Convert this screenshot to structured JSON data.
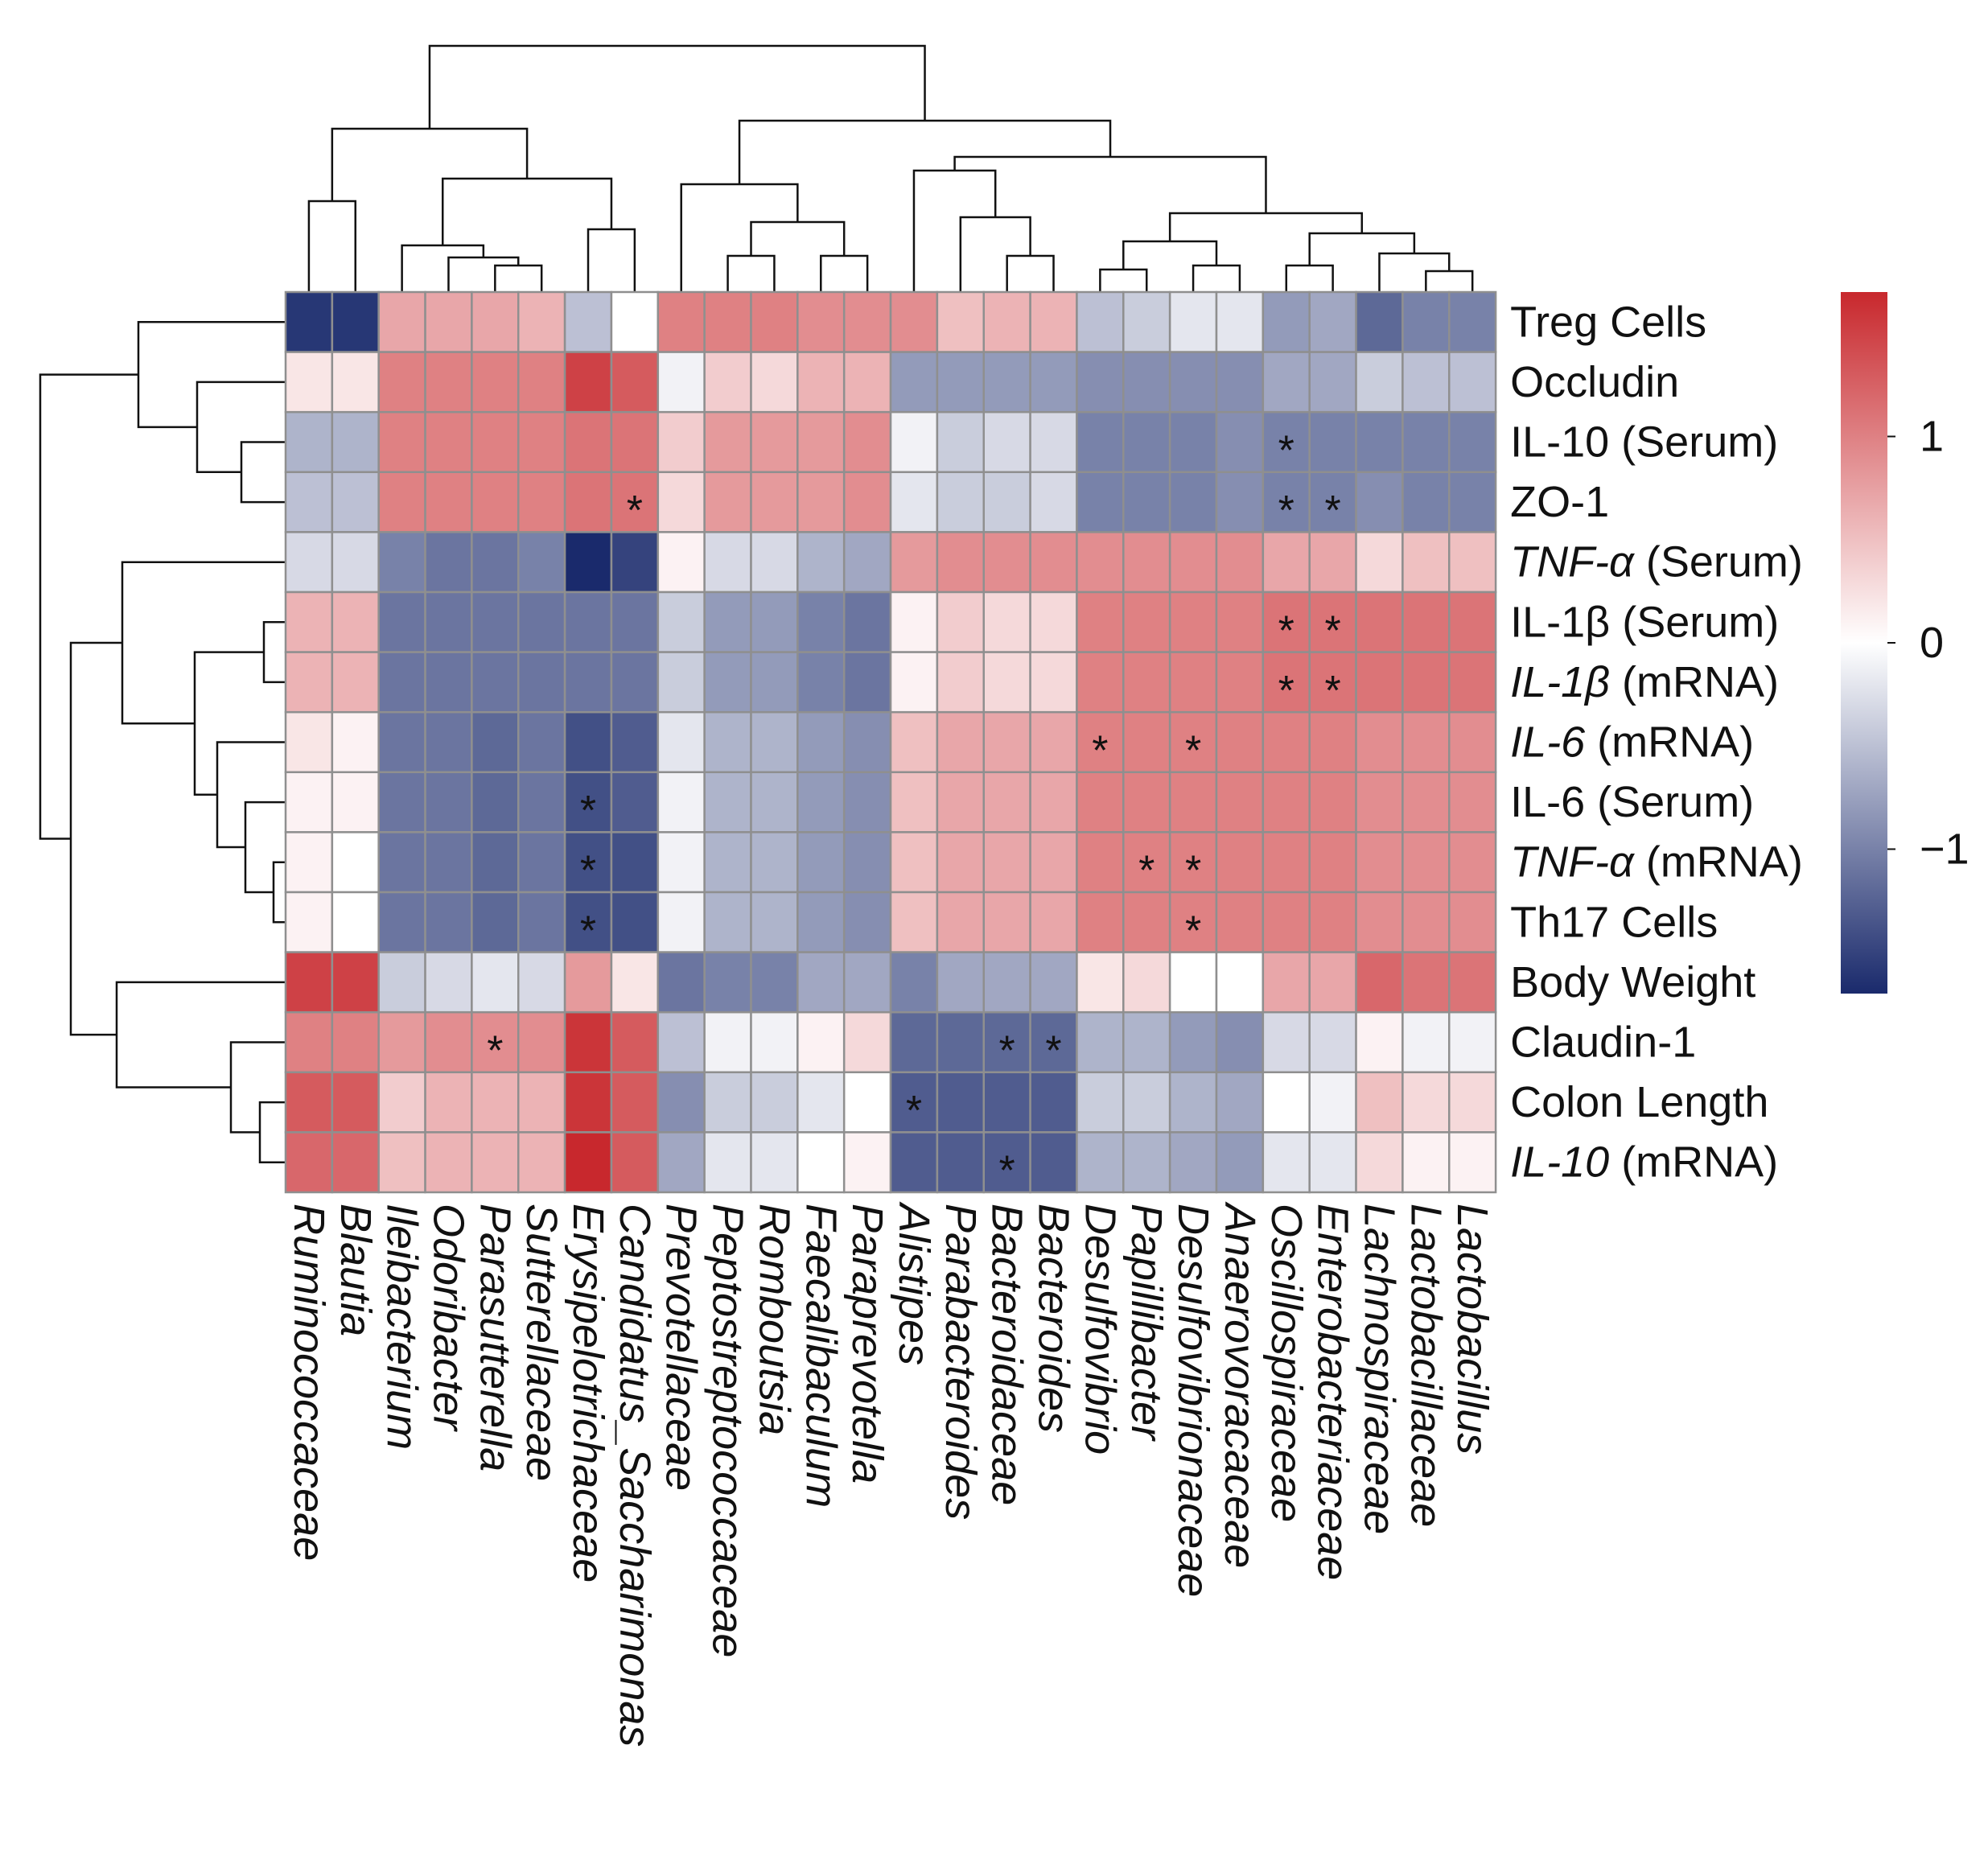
{
  "chart_data": {
    "type": "heatmap",
    "title": "",
    "color_scale": {
      "low": "#1a2a6c",
      "mid": "#ffffff",
      "high": "#c8282d",
      "ticks": [
        1,
        0,
        -1
      ],
      "tick_labels": [
        "1",
        "0",
        "−1"
      ],
      "range": [
        -1.7,
        1.7
      ]
    },
    "rows": [
      {
        "name": "Treg Cells",
        "parts": [
          {
            "t": "Treg Cells",
            "i": false
          }
        ]
      },
      {
        "name": "Occludin",
        "parts": [
          {
            "t": "Occludin",
            "i": false
          }
        ]
      },
      {
        "name": "IL-10 (Serum)",
        "parts": [
          {
            "t": "IL-10 (Serum)",
            "i": false
          }
        ]
      },
      {
        "name": "ZO-1",
        "parts": [
          {
            "t": "ZO-1",
            "i": false
          }
        ]
      },
      {
        "name": "TNF-α (Serum)",
        "parts": [
          {
            "t": "TNF-α",
            "i": true
          },
          {
            "t": " (Serum)",
            "i": false
          }
        ]
      },
      {
        "name": "IL-1β (Serum)",
        "parts": [
          {
            "t": "IL-1β (Serum)",
            "i": false
          }
        ]
      },
      {
        "name": "IL-1β (mRNA)",
        "parts": [
          {
            "t": "IL-1β",
            "i": true
          },
          {
            "t": " (mRNA)",
            "i": false
          }
        ]
      },
      {
        "name": "IL-6 (mRNA)",
        "parts": [
          {
            "t": "IL-6",
            "i": true
          },
          {
            "t": " (mRNA)",
            "i": false
          }
        ]
      },
      {
        "name": "IL-6 (Serum)",
        "parts": [
          {
            "t": "IL-6 (Serum)",
            "i": false
          }
        ]
      },
      {
        "name": "TNF-α (mRNA)",
        "parts": [
          {
            "t": "TNF-α",
            "i": true
          },
          {
            "t": " (mRNA)",
            "i": false
          }
        ]
      },
      {
        "name": "Th17 Cells",
        "parts": [
          {
            "t": "Th17 Cells",
            "i": false
          }
        ]
      },
      {
        "name": "Body Weight",
        "parts": [
          {
            "t": "Body Weight",
            "i": false
          }
        ]
      },
      {
        "name": "Claudin-1",
        "parts": [
          {
            "t": "Claudin-1",
            "i": false
          }
        ]
      },
      {
        "name": "Colon Length",
        "parts": [
          {
            "t": "Colon Length",
            "i": false
          }
        ]
      },
      {
        "name": "IL-10 (mRNA)",
        "parts": [
          {
            "t": "IL-10",
            "i": true
          },
          {
            "t": " (mRNA)",
            "i": false
          }
        ]
      }
    ],
    "columns": [
      "Ruminococcaceae",
      "Blautia",
      "Ileibacterium",
      "Odoribacter",
      "Parasutterella",
      "Sutterellaceae",
      "Erysipelotrichaceae",
      "Candidatus_Saccharimonas",
      "Prevotellaceae",
      "Peptostreptococcaceae",
      "Romboutsia",
      "Faecalibaculum",
      "Paraprevotella",
      "Alistipes",
      "Parabacteroides",
      "Bacteroidaceae",
      "Bacteroides",
      "Desulfovibrio",
      "Papillibacter",
      "Desulfovibrionaceae",
      "Anaerovoracaceae",
      "Oscillospiraceae",
      "Enterobacteriaceae",
      "Lachnospiraceae",
      "Lactobacillaceae",
      "Lactobacillus"
    ],
    "values": [
      [
        -1.6,
        -1.6,
        0.7,
        0.7,
        0.7,
        0.6,
        -0.5,
        0.0,
        1.0,
        1.0,
        1.0,
        0.9,
        0.9,
        0.9,
        0.5,
        0.6,
        0.6,
        -0.5,
        -0.4,
        -0.2,
        -0.2,
        -0.8,
        -0.7,
        -1.2,
        -1.0,
        -1.0
      ],
      [
        0.2,
        0.2,
        1.0,
        1.0,
        1.0,
        1.0,
        1.5,
        1.3,
        -0.1,
        0.4,
        0.3,
        0.6,
        0.6,
        -0.8,
        -0.8,
        -0.8,
        -0.8,
        -0.9,
        -0.9,
        -0.9,
        -0.9,
        -0.7,
        -0.7,
        -0.4,
        -0.5,
        -0.5
      ],
      [
        -0.6,
        -0.6,
        1.0,
        1.0,
        1.0,
        1.0,
        1.1,
        1.1,
        0.4,
        0.8,
        0.8,
        0.8,
        0.9,
        -0.1,
        -0.4,
        -0.3,
        -0.3,
        -1.0,
        -1.0,
        -1.0,
        -0.9,
        -1.0,
        -1.0,
        -1.0,
        -1.0,
        -1.0
      ],
      [
        -0.5,
        -0.5,
        1.0,
        1.0,
        1.0,
        1.0,
        1.1,
        1.1,
        0.3,
        0.8,
        0.8,
        0.8,
        0.9,
        -0.2,
        -0.4,
        -0.4,
        -0.3,
        -1.0,
        -1.0,
        -1.0,
        -0.9,
        -1.0,
        -1.0,
        -0.9,
        -1.0,
        -1.0
      ],
      [
        -0.3,
        -0.3,
        -1.0,
        -1.1,
        -1.1,
        -1.0,
        -1.7,
        -1.5,
        0.1,
        -0.3,
        -0.3,
        -0.6,
        -0.7,
        0.8,
        0.9,
        0.9,
        0.9,
        0.9,
        0.9,
        0.9,
        0.9,
        0.7,
        0.7,
        0.3,
        0.5,
        0.5
      ],
      [
        0.6,
        0.6,
        -1.1,
        -1.1,
        -1.1,
        -1.1,
        -1.1,
        -1.1,
        -0.4,
        -0.8,
        -0.8,
        -1.0,
        -1.1,
        0.1,
        0.4,
        0.3,
        0.3,
        1.0,
        1.0,
        1.0,
        1.0,
        1.1,
        1.1,
        1.1,
        1.1,
        1.1
      ],
      [
        0.6,
        0.6,
        -1.1,
        -1.1,
        -1.1,
        -1.1,
        -1.1,
        -1.1,
        -0.4,
        -0.8,
        -0.8,
        -1.0,
        -1.1,
        0.1,
        0.4,
        0.3,
        0.3,
        1.0,
        1.0,
        1.0,
        1.0,
        1.1,
        1.1,
        1.1,
        1.1,
        1.1
      ],
      [
        0.2,
        0.1,
        -1.1,
        -1.1,
        -1.2,
        -1.1,
        -1.4,
        -1.3,
        -0.2,
        -0.6,
        -0.6,
        -0.8,
        -0.9,
        0.5,
        0.7,
        0.7,
        0.7,
        1.0,
        1.0,
        1.0,
        1.0,
        1.0,
        1.0,
        0.9,
        0.9,
        0.9
      ],
      [
        0.1,
        0.1,
        -1.1,
        -1.1,
        -1.2,
        -1.1,
        -1.4,
        -1.3,
        -0.1,
        -0.6,
        -0.6,
        -0.8,
        -0.9,
        0.5,
        0.7,
        0.7,
        0.7,
        1.0,
        1.0,
        1.0,
        1.0,
        1.0,
        1.0,
        0.9,
        0.9,
        0.9
      ],
      [
        0.1,
        0.0,
        -1.1,
        -1.1,
        -1.2,
        -1.1,
        -1.4,
        -1.4,
        -0.1,
        -0.6,
        -0.6,
        -0.8,
        -0.9,
        0.5,
        0.7,
        0.7,
        0.7,
        1.0,
        1.0,
        1.0,
        1.0,
        1.0,
        1.0,
        0.9,
        0.9,
        0.9
      ],
      [
        0.1,
        0.0,
        -1.1,
        -1.1,
        -1.2,
        -1.1,
        -1.4,
        -1.4,
        -0.1,
        -0.6,
        -0.6,
        -0.8,
        -0.9,
        0.5,
        0.7,
        0.7,
        0.7,
        1.0,
        1.0,
        1.0,
        1.0,
        1.0,
        1.0,
        0.9,
        0.9,
        0.9
      ],
      [
        1.5,
        1.5,
        -0.4,
        -0.3,
        -0.2,
        -0.3,
        0.8,
        0.2,
        -1.1,
        -1.0,
        -1.0,
        -0.7,
        -0.7,
        -1.0,
        -0.7,
        -0.7,
        -0.7,
        0.2,
        0.3,
        0.0,
        0.0,
        0.7,
        0.7,
        1.2,
        1.1,
        1.1
      ],
      [
        1.0,
        1.0,
        0.8,
        0.9,
        0.9,
        0.9,
        1.6,
        1.3,
        -0.5,
        -0.1,
        -0.1,
        0.1,
        0.3,
        -1.2,
        -1.2,
        -1.2,
        -1.2,
        -0.6,
        -0.6,
        -0.8,
        -0.9,
        -0.3,
        -0.3,
        0.1,
        -0.1,
        -0.1
      ],
      [
        1.3,
        1.3,
        0.4,
        0.6,
        0.6,
        0.6,
        1.6,
        1.3,
        -0.9,
        -0.4,
        -0.4,
        -0.2,
        0.0,
        -1.3,
        -1.3,
        -1.3,
        -1.3,
        -0.4,
        -0.4,
        -0.6,
        -0.7,
        0.0,
        -0.1,
        0.5,
        0.3,
        0.3
      ],
      [
        1.2,
        1.2,
        0.5,
        0.6,
        0.6,
        0.6,
        1.7,
        1.3,
        -0.7,
        -0.2,
        -0.2,
        0.0,
        0.1,
        -1.3,
        -1.3,
        -1.3,
        -1.3,
        -0.6,
        -0.6,
        -0.7,
        -0.8,
        -0.2,
        -0.2,
        0.3,
        0.1,
        0.1
      ]
    ],
    "significance": [
      {
        "row": 2,
        "col": 21,
        "mark": "*"
      },
      {
        "row": 3,
        "col": 7,
        "mark": "*"
      },
      {
        "row": 3,
        "col": 21,
        "mark": "*"
      },
      {
        "row": 3,
        "col": 22,
        "mark": "*"
      },
      {
        "row": 5,
        "col": 21,
        "mark": "*"
      },
      {
        "row": 5,
        "col": 22,
        "mark": "*"
      },
      {
        "row": 6,
        "col": 21,
        "mark": "*"
      },
      {
        "row": 6,
        "col": 22,
        "mark": "*"
      },
      {
        "row": 7,
        "col": 17,
        "mark": "*"
      },
      {
        "row": 7,
        "col": 19,
        "mark": "*"
      },
      {
        "row": 8,
        "col": 6,
        "mark": "*"
      },
      {
        "row": 9,
        "col": 6,
        "mark": "*"
      },
      {
        "row": 9,
        "col": 18,
        "mark": "*"
      },
      {
        "row": 9,
        "col": 19,
        "mark": "*"
      },
      {
        "row": 10,
        "col": 6,
        "mark": "*"
      },
      {
        "row": 10,
        "col": 19,
        "mark": "*"
      },
      {
        "row": 12,
        "col": 4,
        "mark": "*"
      },
      {
        "row": 12,
        "col": 15,
        "mark": "*"
      },
      {
        "row": 12,
        "col": 16,
        "mark": "*"
      },
      {
        "row": 13,
        "col": 13,
        "mark": "*"
      },
      {
        "row": 14,
        "col": 15,
        "mark": "*"
      }
    ],
    "col_dendrogram": [
      [
        2,
        3
      ],
      [
        4,
        5
      ],
      [
        26,
        27
      ],
      [
        28,
        29
      ],
      [
        30,
        31
      ],
      [
        32,
        33
      ],
      [
        34,
        35
      ],
      [
        36,
        37
      ],
      [
        38,
        39
      ],
      [
        40,
        41
      ],
      [
        42,
        43
      ],
      [
        44,
        45
      ],
      [
        46,
        47
      ],
      [
        48,
        49
      ],
      [
        50,
        51
      ],
      [
        52,
        53
      ],
      [
        54,
        55
      ],
      [
        56,
        57
      ],
      [
        58,
        59
      ],
      [
        60,
        61
      ],
      [
        62,
        63
      ],
      [
        64,
        65
      ],
      [
        66,
        67
      ],
      [
        68,
        69
      ],
      [
        70,
        71
      ],
      [
        72,
        73
      ],
      [
        74,
        75
      ],
      [
        76,
        77
      ]
    ],
    "row_dendrogram": []
  }
}
